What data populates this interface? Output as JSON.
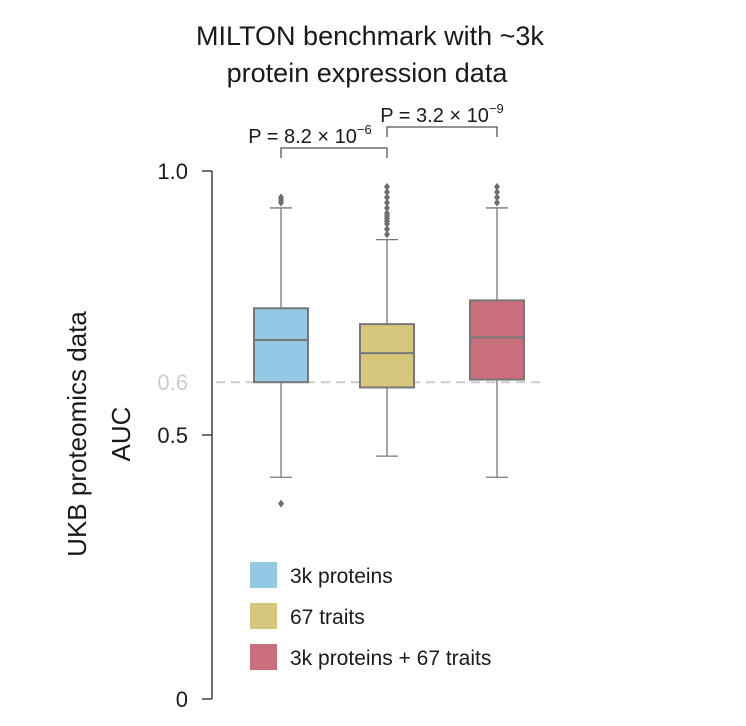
{
  "chart_data": {
    "type": "box",
    "title": [
      "MILTON benchmark with ~3k",
      "protein expression data"
    ],
    "ylabel": [
      "UKB proteomics data",
      "AUC"
    ],
    "ylim": [
      0,
      1.0
    ],
    "yticks": [
      "1.0",
      "0.5",
      "0"
    ],
    "reference_line": {
      "value": 0.6,
      "label": "0.6",
      "color": "#cccccc"
    },
    "colors": {
      "box_stroke": "#777777",
      "axis": "#333333",
      "series": [
        "#94c9e6",
        "#d6c77c",
        "#c96f7c"
      ]
    },
    "series": [
      {
        "name": "3k proteins",
        "whisker_low": 0.42,
        "q1": 0.6,
        "median": 0.68,
        "q3": 0.74,
        "whisker_high": 0.93,
        "outliers": [
          0.37,
          0.94,
          0.945,
          0.95
        ]
      },
      {
        "name": "67 traits",
        "whisker_low": 0.46,
        "q1": 0.59,
        "median": 0.655,
        "q3": 0.71,
        "whisker_high": 0.87,
        "outliers": [
          0.88,
          0.89,
          0.9,
          0.905,
          0.91,
          0.915,
          0.92,
          0.93,
          0.94,
          0.95,
          0.96,
          0.97
        ]
      },
      {
        "name": "3k proteins + 67 traits",
        "whisker_low": 0.42,
        "q1": 0.605,
        "median": 0.685,
        "q3": 0.755,
        "whisker_high": 0.93,
        "outliers": [
          0.94,
          0.95,
          0.96,
          0.97
        ]
      }
    ],
    "comparisons": [
      {
        "from": 0,
        "to": 1,
        "label": "P = 8.2 × 10",
        "exponent": "−6"
      },
      {
        "from": 1,
        "to": 2,
        "label": "P = 3.2 × 10",
        "exponent": "−9"
      }
    ],
    "legend": [
      "3k proteins",
      "67 traits",
      "3k proteins + 67 traits"
    ]
  }
}
